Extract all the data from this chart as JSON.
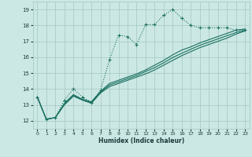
{
  "xlabel": "Humidex (Indice chaleur)",
  "bg_color": "#cce8e4",
  "grid_color": "#aaccc8",
  "line_color": "#1a7060",
  "xlim": [
    -0.5,
    23.5
  ],
  "ylim": [
    11.5,
    19.5
  ],
  "xticks": [
    0,
    1,
    2,
    3,
    4,
    5,
    6,
    7,
    8,
    9,
    10,
    11,
    12,
    13,
    14,
    15,
    16,
    17,
    18,
    19,
    20,
    21,
    22,
    23
  ],
  "yticks": [
    12,
    13,
    14,
    15,
    16,
    17,
    18,
    19
  ],
  "series_dotted": [
    13.5,
    12.1,
    12.2,
    13.3,
    14.0,
    13.5,
    13.15,
    13.9,
    15.85,
    17.4,
    17.3,
    16.8,
    18.05,
    18.05,
    18.65,
    19.0,
    18.45,
    18.0,
    17.85,
    17.85,
    17.85,
    17.85,
    17.7,
    17.7
  ],
  "series_linear": [
    [
      13.5,
      12.1,
      12.2,
      13.0,
      13.55,
      13.3,
      13.1,
      13.75,
      14.15,
      14.35,
      14.55,
      14.75,
      14.95,
      15.2,
      15.5,
      15.8,
      16.1,
      16.35,
      16.6,
      16.8,
      17.0,
      17.2,
      17.45,
      17.65
    ],
    [
      13.5,
      12.1,
      12.2,
      13.05,
      13.6,
      13.32,
      13.15,
      13.8,
      14.25,
      14.45,
      14.65,
      14.85,
      15.1,
      15.35,
      15.65,
      15.98,
      16.25,
      16.5,
      16.75,
      16.95,
      17.15,
      17.35,
      17.55,
      17.7
    ],
    [
      13.5,
      12.1,
      12.2,
      13.1,
      13.65,
      13.35,
      13.2,
      13.85,
      14.35,
      14.55,
      14.75,
      14.95,
      15.2,
      15.5,
      15.8,
      16.15,
      16.45,
      16.65,
      16.9,
      17.1,
      17.3,
      17.5,
      17.7,
      17.78
    ]
  ]
}
